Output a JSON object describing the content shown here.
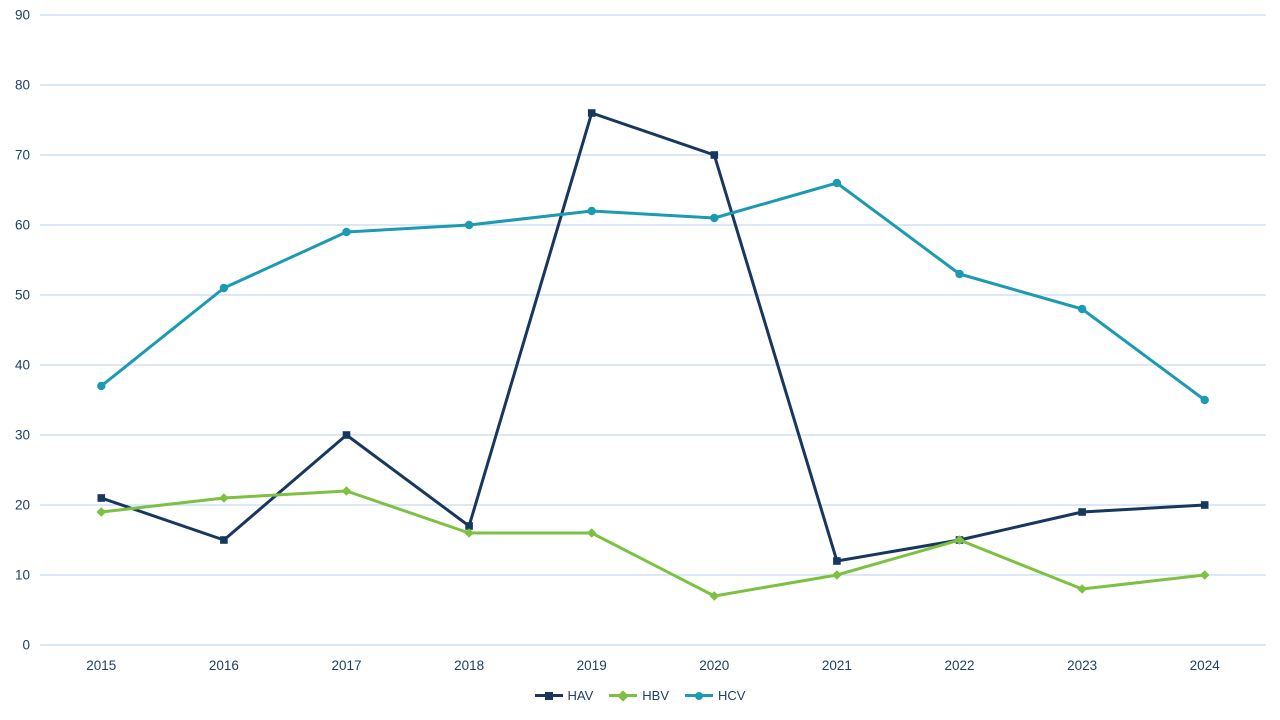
{
  "chart_data": {
    "type": "line",
    "title": "",
    "xlabel": "",
    "ylabel": "",
    "categories": [
      "2015",
      "2016",
      "2017",
      "2018",
      "2019",
      "2020",
      "2021",
      "2022",
      "2023",
      "2024"
    ],
    "series": [
      {
        "name": "HAV",
        "marker": "square",
        "color": "#17375E",
        "values": [
          21,
          15,
          30,
          17,
          76,
          70,
          12,
          15,
          19,
          20
        ]
      },
      {
        "name": "HBV",
        "marker": "diamond",
        "color": "#7CC142",
        "values": [
          19,
          21,
          22,
          16,
          16,
          7,
          10,
          15,
          8,
          10
        ]
      },
      {
        "name": "HCV",
        "marker": "circle",
        "color": "#1B9AB2",
        "values": [
          37,
          51,
          59,
          60,
          62,
          61,
          66,
          53,
          48,
          35
        ]
      }
    ],
    "ylim": [
      0,
      90
    ],
    "ytick_step": 10,
    "ytick_labels": [
      "0",
      "10",
      "20",
      "30",
      "40",
      "50",
      "60",
      "70",
      "80",
      "90"
    ],
    "grid": "horizontal",
    "legend_position": "bottom-center",
    "colors": {
      "background": "#FFFFFF",
      "gridline": "#C5DCF2",
      "axis_text": "#1D4166"
    }
  },
  "legend": {
    "items": [
      {
        "label": "HAV"
      },
      {
        "label": "HBV"
      },
      {
        "label": "HCV"
      }
    ]
  }
}
